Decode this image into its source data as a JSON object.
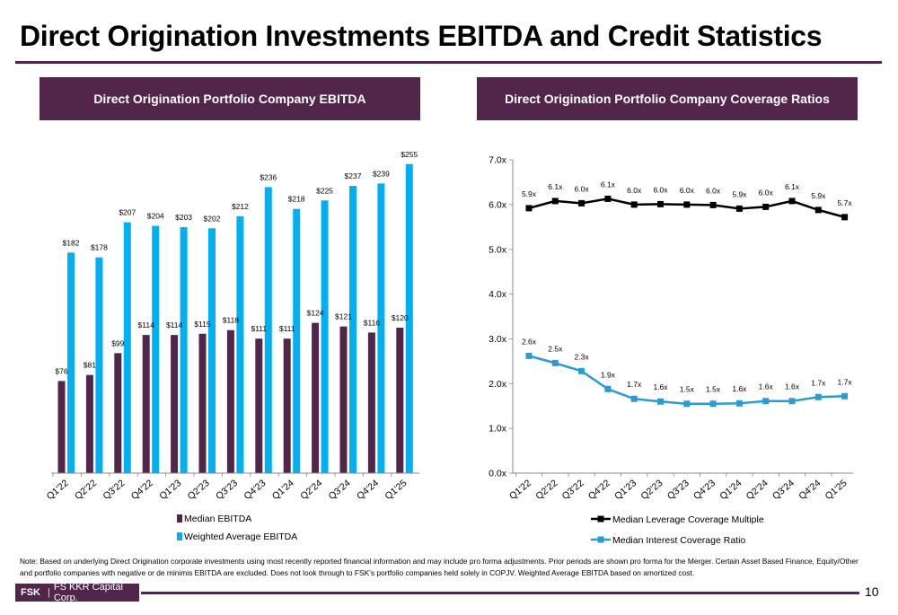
{
  "page": {
    "title": "Direct Origination Investments EBITDA and Credit Statistics",
    "note": "Note: Based on underlying Direct Origination corporate investments using most recently reported financial information and may include pro forma adjustments. Prior periods are shown pro forma for the Merger. Certain Asset Based Finance, Equity/Other and portfolio companies with negative or de minimis EBITDA are excluded. Does not look through to FSK’s portfolio companies held solely in COPJV. Weighted Average EBITDA based on amortized cost.",
    "footer": {
      "logo_bold": "FSK",
      "logo_sep": "|",
      "logo_text": "FS KKR Capital Corp.",
      "page_number": "10"
    },
    "colors": {
      "brand": "#52264a",
      "median_bar": "#52264a",
      "weighted_bar": "#00b0f0",
      "leverage_line": "#000000",
      "interest_line": "#2b9bd3"
    }
  },
  "chart_data": [
    {
      "type": "bar",
      "title": "Direct Origination Portfolio Company EBITDA",
      "categories": [
        "Q1'22",
        "Q2'22",
        "Q3'22",
        "Q4'22",
        "Q1'23",
        "Q2'23",
        "Q3'23",
        "Q4'23",
        "Q1'24",
        "Q2'24",
        "Q3'24",
        "Q4'24",
        "Q1'25"
      ],
      "series": [
        {
          "name": "Median EBITDA",
          "values": [
            76,
            81,
            99,
            114,
            114,
            115,
            118,
            111,
            111,
            124,
            121,
            116,
            120
          ],
          "labels": [
            "$76",
            "$81",
            "$99",
            "$114",
            "$114",
            "$115",
            "$118",
            "$111",
            "$111",
            "$124",
            "$121",
            "$116",
            "$120"
          ]
        },
        {
          "name": "Weighted Average EBITDA",
          "values": [
            182,
            178,
            207,
            204,
            203,
            202,
            212,
            236,
            218,
            225,
            237,
            239,
            255
          ],
          "labels": [
            "$182",
            "$178",
            "$207",
            "$204",
            "$203",
            "$202",
            "$212",
            "$236",
            "$218",
            "$225",
            "$237",
            "$239",
            "$255"
          ]
        }
      ],
      "legend": "bottom",
      "grid": false
    },
    {
      "type": "line",
      "title": "Direct Origination Portfolio Company Coverage Ratios",
      "categories": [
        "Q1'22",
        "Q2'22",
        "Q3'22",
        "Q4'22",
        "Q1'23",
        "Q2'23",
        "Q3'23",
        "Q4'23",
        "Q1'24",
        "Q2'24",
        "Q3'24",
        "Q4'24",
        "Q1'25"
      ],
      "ylim": [
        0,
        7
      ],
      "yticks": [
        "0.0x",
        "1.0x",
        "2.0x",
        "3.0x",
        "4.0x",
        "5.0x",
        "6.0x",
        "7.0x"
      ],
      "series": [
        {
          "name": "Median Leverage Coverage Multiple",
          "values": [
            5.92,
            6.08,
            6.03,
            6.13,
            6.0,
            6.01,
            6.0,
            5.99,
            5.91,
            5.95,
            6.08,
            5.88,
            5.72
          ],
          "labels": [
            "5.9x",
            "6.1x",
            "6.0x",
            "6.1x",
            "6.0x",
            "6.0x",
            "6.0x",
            "6.0x",
            "5.9x",
            "6.0x",
            "6.1x",
            "5.9x",
            "5.7x"
          ]
        },
        {
          "name": "Median Interest Coverage Ratio",
          "values": [
            2.62,
            2.46,
            2.28,
            1.88,
            1.66,
            1.6,
            1.55,
            1.55,
            1.56,
            1.61,
            1.61,
            1.7,
            1.72
          ],
          "labels": [
            "2.6x",
            "2.5x",
            "2.3x",
            "1.9x",
            "1.7x",
            "1.6x",
            "1.5x",
            "1.5x",
            "1.6x",
            "1.6x",
            "1.6x",
            "1.7x",
            "1.7x"
          ]
        }
      ],
      "legend": "bottom",
      "grid": false
    }
  ]
}
